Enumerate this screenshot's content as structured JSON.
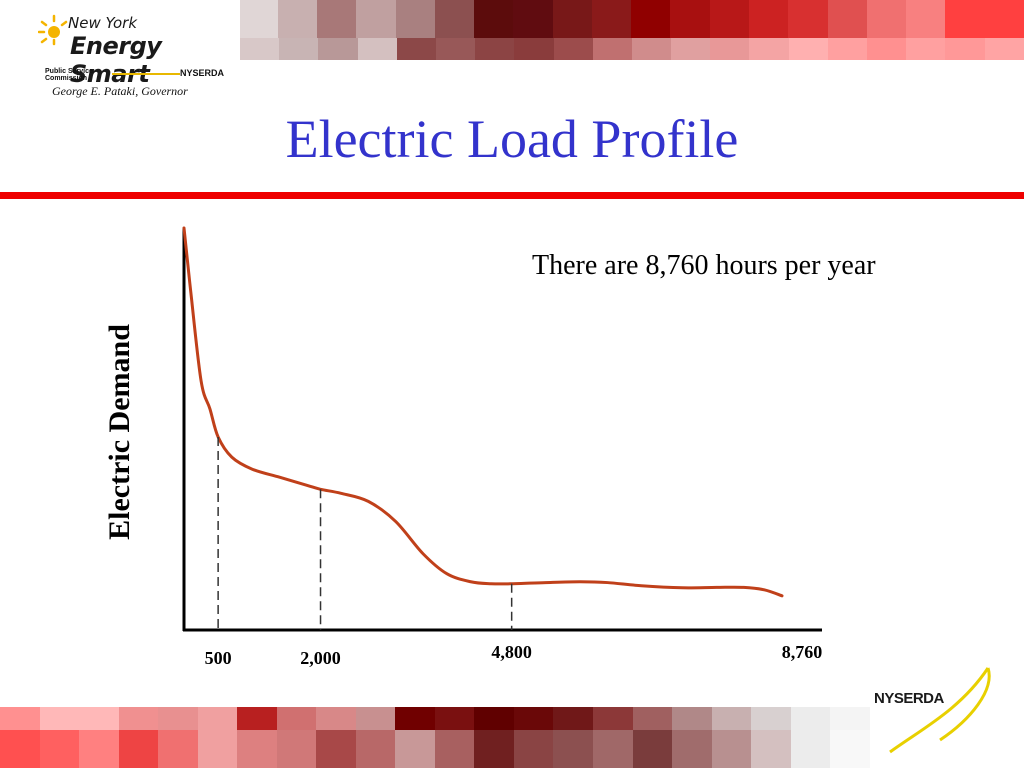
{
  "header": {
    "logo_line1": "New York",
    "logo_line2": "Energy Smart",
    "logo_psc": "Public Service Commission",
    "logo_nyserda": "NYSERDA",
    "governor": "George E. Pataki, Governor"
  },
  "slide": {
    "title": "Electric Load Profile",
    "note": "There are 8,760 hours per year"
  },
  "footer": {
    "logo_text": "NYSERDA"
  },
  "colors": {
    "title": "#3333cc",
    "rule": "#ee0000",
    "curve": "#c0401a"
  },
  "decor": {
    "top_band_1": [
      "#e6e6e6",
      "#f2f2f2",
      "#e0d6d6",
      "#c8b0b0",
      "#a87878",
      "#c0a0a0",
      "#a98080",
      "#8c5050",
      "#5c0c0c",
      "#600c10",
      "#781818",
      "#8a1a1a",
      "#900000",
      "#a81010",
      "#b81818",
      "#cc2222",
      "#d83030",
      "#e05050",
      "#f07070",
      "#f88080",
      "#ff4040",
      "#ff4040"
    ],
    "top_band_2": [
      "#d8c8c8",
      "#c8b4b4",
      "#b89898",
      "#d4c0c0",
      "#8c4848",
      "#985858",
      "#8c4444",
      "#8a3c3c",
      "#9c4c4c",
      "#c07070",
      "#d08c8c",
      "#e0a0a0",
      "#e89898",
      "#f4a4a4",
      "#ffb0b0",
      "#ffa0a0",
      "#ff9090",
      "#ffa0a0",
      "#ff9898",
      "#ffa4a4"
    ],
    "bottom_band_1": [
      "#ff9090",
      "#ffb8b8",
      "#ffb8b8",
      "#f09090",
      "#e89090",
      "#f0a0a0",
      "#b82020",
      "#d07070",
      "#d88888",
      "#c89090",
      "#700000",
      "#7a1010",
      "#600000",
      "#6a0808",
      "#701818",
      "#8c3838",
      "#a06060",
      "#b08888",
      "#c8b0b0",
      "#d8d0d0",
      "#ececec",
      "#f4f4f4"
    ],
    "bottom_band_2": [
      "#ff5050",
      "#ff6060",
      "#ff8080",
      "#ee4444",
      "#f07070",
      "#f0a0a0",
      "#dd8080",
      "#d07878",
      "#a84848",
      "#b86868",
      "#c89898",
      "#a86060",
      "#702020",
      "#8a4444",
      "#8c5050",
      "#a06868",
      "#7a3c3c",
      "#a06c6c",
      "#b89090",
      "#d4c0c0",
      "#ececec",
      "#f8f8f8"
    ]
  },
  "chart_data": {
    "type": "line",
    "title": "Electric Load Profile",
    "ylabel": "Electric Demand",
    "xlabel": "",
    "xlim": [
      0,
      8760
    ],
    "ylim": [
      0,
      100
    ],
    "tick_labels": [
      "500",
      "2,000",
      "4,800",
      "8,760"
    ],
    "tick_values": [
      500,
      2000,
      4800,
      8760
    ],
    "reference_lines_at": [
      500,
      2000,
      4800
    ],
    "series": [
      {
        "x": [
          0,
          100,
          250,
          380,
          500,
          700,
          1000,
          1400,
          1800,
          2000,
          2300,
          2700,
          3100,
          3500,
          3850,
          4200,
          4500,
          4800,
          5300,
          5800,
          6200,
          6700,
          7300,
          7800,
          8200,
          8500,
          8760
        ],
        "y": [
          100,
          84,
          62,
          55,
          48,
          43,
          40,
          38,
          36,
          35,
          34,
          32,
          27,
          19,
          14,
          12,
          11.5,
          11.5,
          11.8,
          12,
          11.8,
          11,
          10.5,
          10.6,
          10.6,
          10,
          8.5
        ]
      }
    ]
  }
}
